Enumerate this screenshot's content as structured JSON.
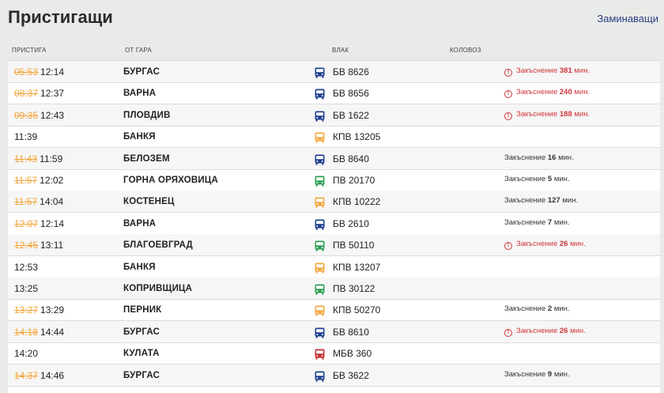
{
  "header": {
    "title": "Пристигащи",
    "switch_label": "Заминаващи"
  },
  "columns": {
    "arrives": "ПРИСТИГА",
    "from": "ОТ ГАРА",
    "train": "ВЛАК",
    "track": "КОЛОВОЗ"
  },
  "colors": {
    "bus_blue": "#1f3f8f",
    "bus_orange": "#f4a940",
    "bus_green": "#2f9e55",
    "bus_red": "#c72d2f",
    "scheduled_strike": "#f3a53c",
    "delay_red": "#d0363a"
  },
  "rows": [
    {
      "scheduled": "05:53",
      "actual": "12:14",
      "station": "БУРГАС",
      "icon": "blue",
      "train": "БВ 8626",
      "delay_prefix": "Закъснение",
      "delay_value": "381",
      "delay_suffix": "мин.",
      "alert": true
    },
    {
      "scheduled": "08:37",
      "actual": "12:37",
      "station": "ВАРНА",
      "icon": "blue",
      "train": "БВ 8656",
      "delay_prefix": "Закъснение",
      "delay_value": "240",
      "delay_suffix": "мин.",
      "alert": true
    },
    {
      "scheduled": "09:35",
      "actual": "12:43",
      "station": "ПЛОВДИВ",
      "icon": "blue",
      "train": "БВ 1622",
      "delay_prefix": "Закъснение",
      "delay_value": "188",
      "delay_suffix": "мин.",
      "alert": true
    },
    {
      "scheduled": "",
      "actual": "11:39",
      "station": "БАНКЯ",
      "icon": "orange",
      "train": "КПВ 13205",
      "delay_prefix": "",
      "delay_value": "",
      "delay_suffix": "",
      "alert": false
    },
    {
      "scheduled": "11:43",
      "actual": "11:59",
      "station": "БЕЛОЗЕМ",
      "icon": "blue",
      "train": "БВ 8640",
      "delay_prefix": "Закъснение",
      "delay_value": "16",
      "delay_suffix": "мин.",
      "alert": false
    },
    {
      "scheduled": "11:57",
      "actual": "12:02",
      "station": "ГОРНА ОРЯХОВИЦА",
      "icon": "green",
      "train": "ПВ 20170",
      "delay_prefix": "Закъснение",
      "delay_value": "5",
      "delay_suffix": "мин.",
      "alert": false
    },
    {
      "scheduled": "11:57",
      "actual": "14:04",
      "station": "КОСТЕНЕЦ",
      "icon": "orange",
      "train": "КПВ 10222",
      "delay_prefix": "Закъснение",
      "delay_value": "127",
      "delay_suffix": "мин.",
      "alert": false
    },
    {
      "scheduled": "12:07",
      "actual": "12:14",
      "station": "ВАРНА",
      "icon": "blue",
      "train": "БВ 2610",
      "delay_prefix": "Закъснение",
      "delay_value": "7",
      "delay_suffix": "мин.",
      "alert": false
    },
    {
      "scheduled": "12:45",
      "actual": "13:11",
      "station": "БЛАГОЕВГРАД",
      "icon": "green",
      "train": "ПВ 50110",
      "delay_prefix": "Закъснение",
      "delay_value": "26",
      "delay_suffix": "мин.",
      "alert": true
    },
    {
      "scheduled": "",
      "actual": "12:53",
      "station": "БАНКЯ",
      "icon": "orange",
      "train": "КПВ 13207",
      "delay_prefix": "",
      "delay_value": "",
      "delay_suffix": "",
      "alert": false
    },
    {
      "scheduled": "",
      "actual": "13:25",
      "station": "КОПРИВЩИЦА",
      "icon": "green",
      "train": "ПВ 30122",
      "delay_prefix": "",
      "delay_value": "",
      "delay_suffix": "",
      "alert": false
    },
    {
      "scheduled": "13:27",
      "actual": "13:29",
      "station": "ПЕРНИК",
      "icon": "orange",
      "train": "КПВ 50270",
      "delay_prefix": "Закъснение",
      "delay_value": "2",
      "delay_suffix": "мин.",
      "alert": false
    },
    {
      "scheduled": "14:18",
      "actual": "14:44",
      "station": "БУРГАС",
      "icon": "blue",
      "train": "БВ 8610",
      "delay_prefix": "Закъснение",
      "delay_value": "26",
      "delay_suffix": "мин.",
      "alert": true
    },
    {
      "scheduled": "",
      "actual": "14:20",
      "station": "КУЛАТА",
      "icon": "red",
      "train": "МБВ 360",
      "delay_prefix": "",
      "delay_value": "",
      "delay_suffix": "",
      "alert": false
    },
    {
      "scheduled": "14:37",
      "actual": "14:46",
      "station": "БУРГАС",
      "icon": "blue",
      "train": "БВ 3622",
      "delay_prefix": "Закъснение",
      "delay_value": "9",
      "delay_suffix": "мин.",
      "alert": false
    }
  ]
}
